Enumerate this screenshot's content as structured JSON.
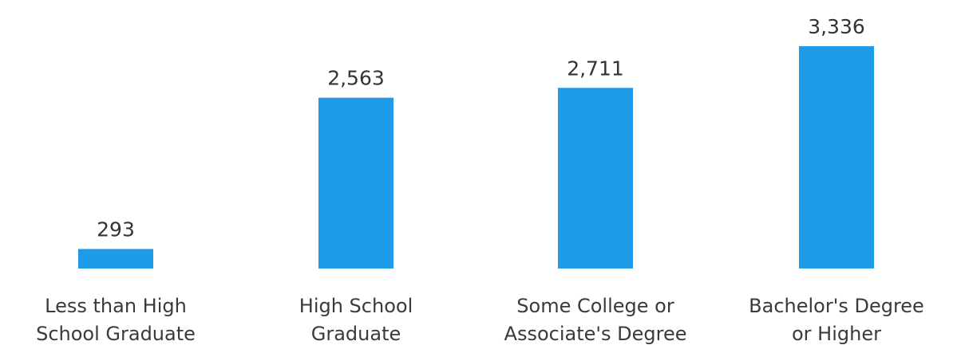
{
  "chart_data": {
    "type": "bar",
    "categories": [
      [
        "Less than High",
        "School Graduate"
      ],
      [
        "High School",
        "Graduate"
      ],
      [
        "Some College or",
        "Associate's Degree"
      ],
      [
        "Bachelor's Degree",
        "or Higher"
      ]
    ],
    "values": [
      293,
      2563,
      2711,
      3336
    ],
    "value_labels": [
      "293",
      "2,563",
      "2,711",
      "3,336"
    ],
    "bar_color": "#1E9BE6",
    "grid": false,
    "legend": "none"
  }
}
